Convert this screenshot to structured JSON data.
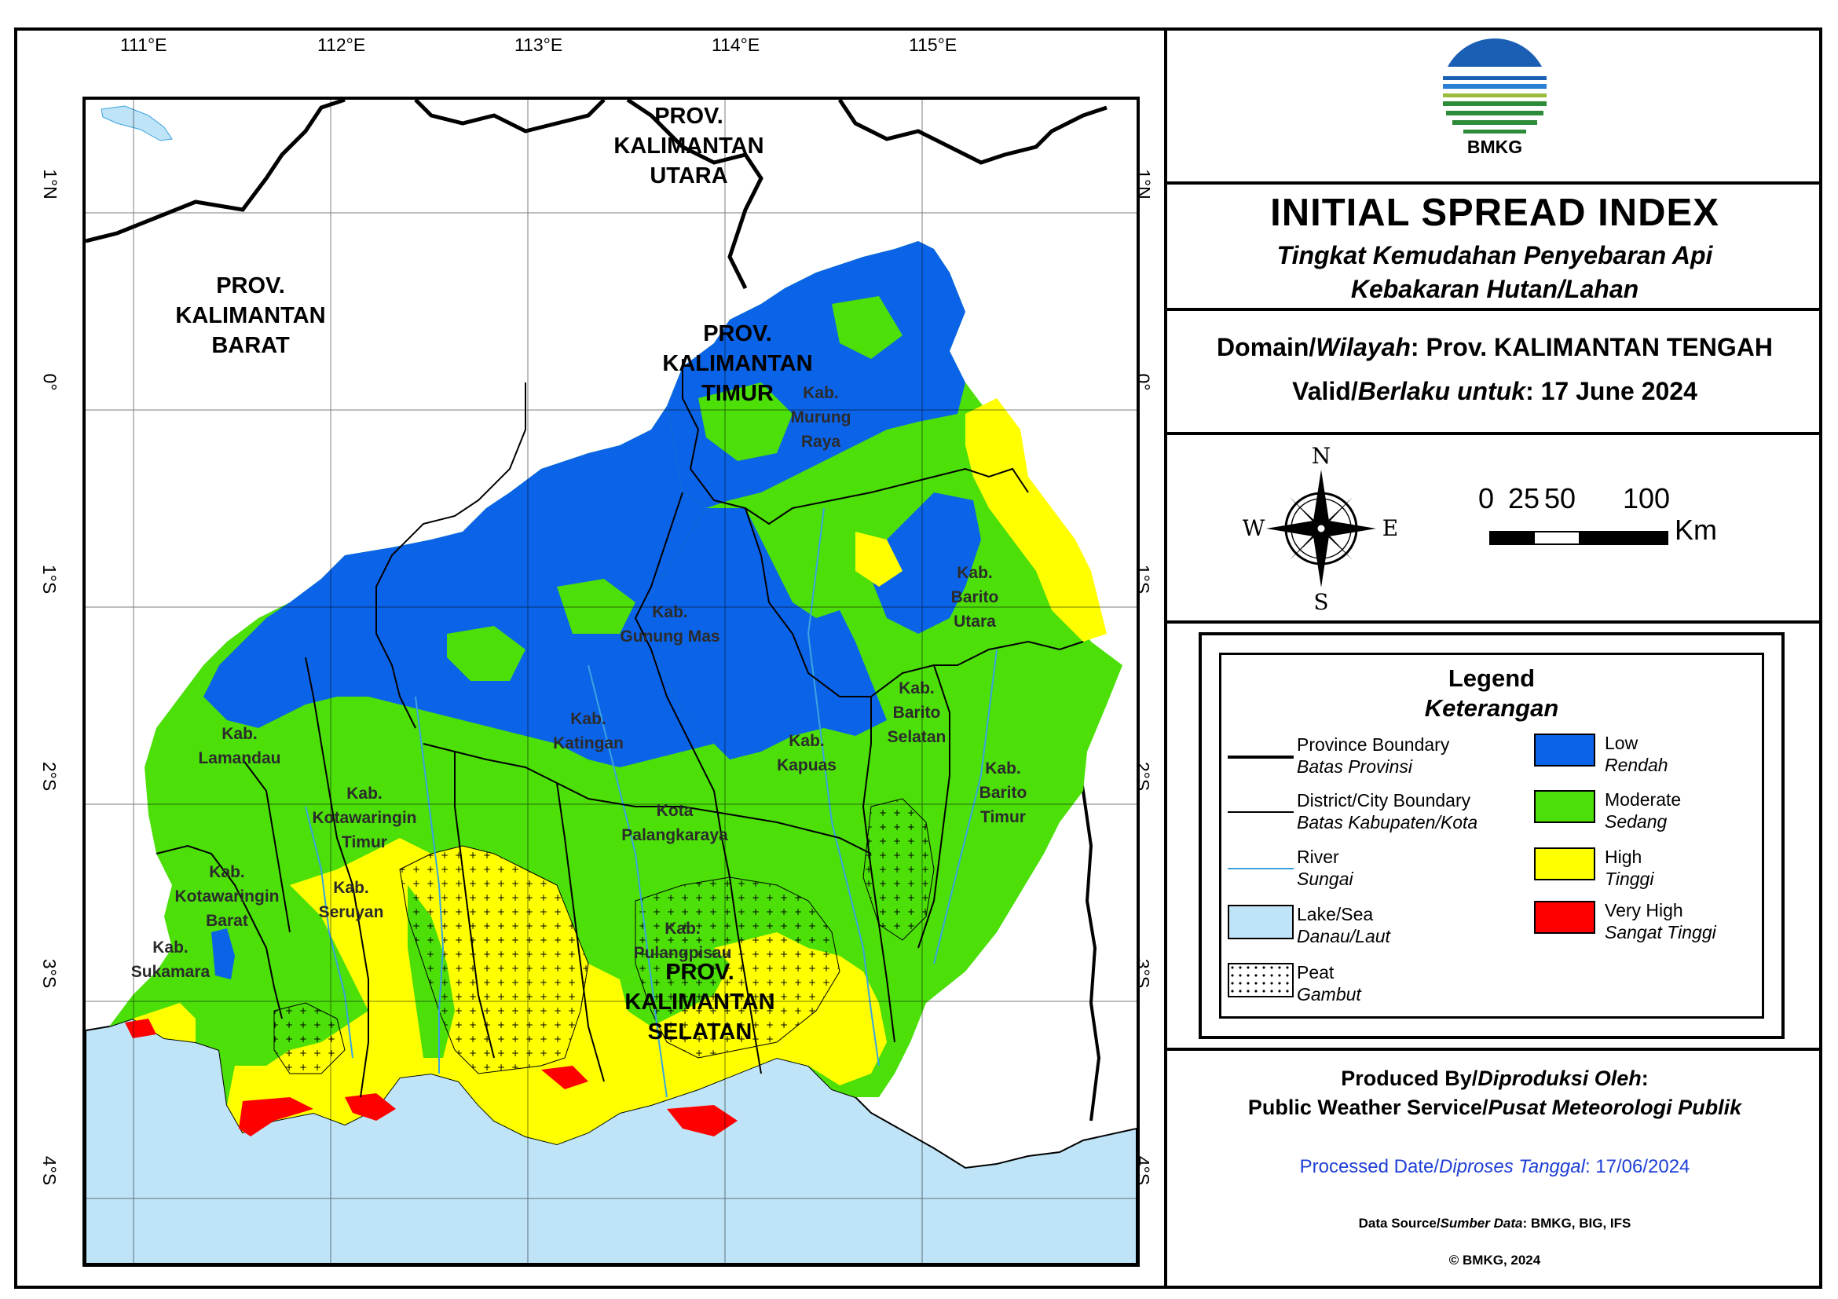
{
  "map": {
    "lon_ticks": [
      "111°E",
      "112°E",
      "113°E",
      "114°E",
      "115°E"
    ],
    "lat_ticks": [
      "1°N",
      "0°",
      "1°S",
      "2°S",
      "3°S",
      "4°S"
    ],
    "provinces": {
      "barat": [
        "PROV.",
        "KALIMANTAN",
        "BARAT"
      ],
      "utara": [
        "PROV.",
        "KALIMANTAN",
        "UTARA"
      ],
      "timur": [
        "PROV.",
        "KALIMANTAN",
        "TIMUR"
      ],
      "selatan": [
        "PROV.",
        "KALIMANTAN",
        "SELATAN"
      ]
    },
    "districts": {
      "murung_raya": [
        "Kab.",
        "Murung",
        "Raya"
      ],
      "barito_utara": [
        "Kab.",
        "Barito",
        "Utara"
      ],
      "gunung_mas": [
        "Kab.",
        "Gunung Mas"
      ],
      "katingan": [
        "Kab.",
        "Katingan"
      ],
      "lamandau": [
        "Kab.",
        "Lamandau"
      ],
      "kapuas": [
        "Kab.",
        "Kapuas"
      ],
      "barito_selatan": [
        "Kab.",
        "Barito",
        "Selatan"
      ],
      "barito_timur": [
        "Kab.",
        "Barito",
        "Timur"
      ],
      "kotawaringin_timur": [
        "Kab.",
        "Kotawaringin",
        "Timur"
      ],
      "palangkaraya": [
        "Kota",
        "Palangkaraya"
      ],
      "kotawaringin_barat": [
        "Kab.",
        "Kotawaringin",
        "Barat"
      ],
      "seruyan": [
        "Kab.",
        "Seruyan"
      ],
      "pulang_pisau": [
        "Kab.",
        "Pulangpisau"
      ],
      "sukamara": [
        "Kab.",
        "Sukamara"
      ]
    },
    "colors": {
      "low": "#0b63e8",
      "moderate": "#4cdf08",
      "high": "#ffff00",
      "very_high": "#ff0000",
      "sea": "#bfe4f7",
      "river": "#3aa3e0"
    }
  },
  "header": {
    "logo_text": "BMKG",
    "title": "INITIAL SPREAD INDEX",
    "subtitle_1": "Tingkat Kemudahan Penyebaran Api",
    "subtitle_2": "Kebakaran Hutan/Lahan"
  },
  "domain": {
    "label_en": "Domain/",
    "label_id": "Wilayah",
    "value": ": Prov. KALIMANTAN TENGAH",
    "valid_en": "Valid/",
    "valid_id": "Berlaku untuk",
    "valid_value": ": 17 June 2024"
  },
  "compass": {
    "n": "N",
    "s": "S",
    "e": "E",
    "w": "W"
  },
  "scale": {
    "labels": [
      "0",
      "25",
      "50",
      "100"
    ],
    "unit": "Km"
  },
  "legend": {
    "title": "Legend",
    "subtitle": "Keterangan",
    "items_left": [
      {
        "en": "Province Boundary",
        "id": "Batas Provinsi"
      },
      {
        "en": "District/City Boundary",
        "id": "Batas Kabupaten/Kota"
      },
      {
        "en": "River",
        "id": "Sungai"
      },
      {
        "en": "Lake/Sea",
        "id": "Danau/Laut"
      },
      {
        "en": "Peat",
        "id": "Gambut"
      }
    ],
    "items_right": [
      {
        "en": "Low",
        "id": "Rendah"
      },
      {
        "en": "Moderate",
        "id": "Sedang"
      },
      {
        "en": "High",
        "id": "Tinggi"
      },
      {
        "en": "Very High",
        "id": "Sangat Tinggi"
      }
    ]
  },
  "footer": {
    "produced_en": "Produced By/",
    "produced_id": "Diproduksi Oleh",
    "service_en": "Public Weather Service/",
    "service_id": "Pusat Meteorologi Publik",
    "processed_en": "Processed Date/",
    "processed_id": "Diproses Tanggal",
    "processed_value": ": 17/06/2024",
    "source_en": "Data Source/",
    "source_id": "Sumber Data",
    "source_value": ": BMKG, BIG, IFS",
    "copyright": "© BMKG, 2024"
  }
}
